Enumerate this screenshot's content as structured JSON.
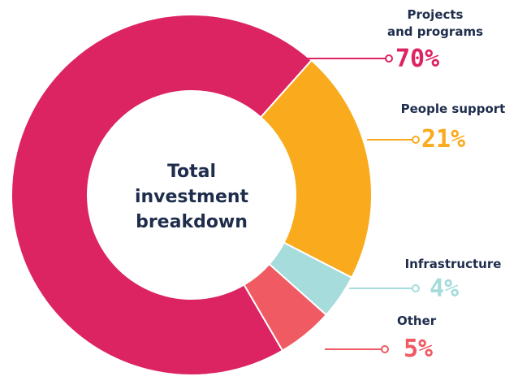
{
  "chart_data": {
    "type": "donut",
    "title": "Total investment breakdown",
    "categories": [
      "Projects\nand programs",
      "People support",
      "Infrastructure",
      "Other"
    ],
    "values": [
      70,
      21,
      4,
      5
    ],
    "value_labels": [
      "70%",
      "21%",
      "4%",
      "5%"
    ],
    "colors": [
      "#dc2463",
      "#f9aa1d",
      "#a6dcdb",
      "#ef5a63"
    ]
  }
}
